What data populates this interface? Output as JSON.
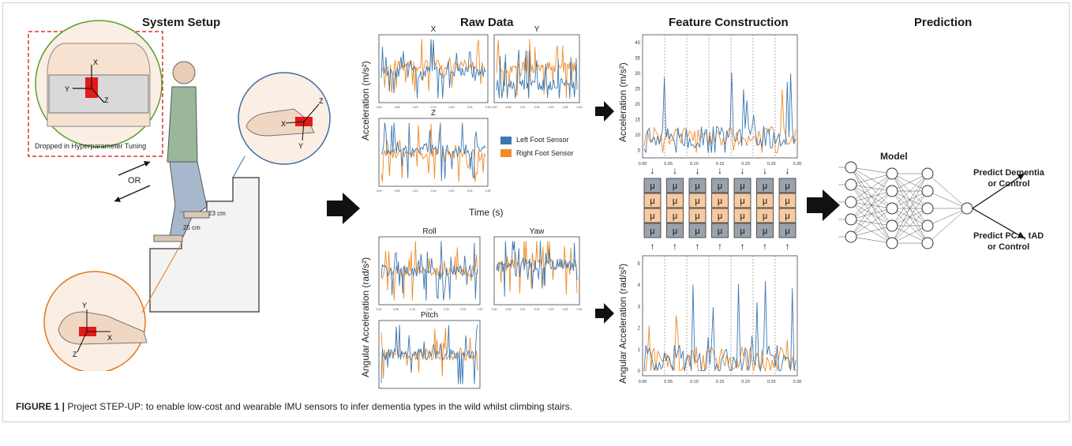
{
  "sections": {
    "setup_title": "System Setup",
    "raw_title": "Raw Data",
    "feature_title": "Feature Construction",
    "prediction_title": "Prediction"
  },
  "setup": {
    "dropped_label": "Dropped in Hyperparameter Tuning",
    "or_label": "OR",
    "step_height": "23 cm",
    "step_depth": "25 cm",
    "axis_x": "X",
    "axis_y": "Y",
    "axis_z": "Z"
  },
  "raw": {
    "accel_ylabel": "Acceleration (m/s²)",
    "angular_ylabel": "Angular Acceleration (rad/s²)",
    "time_label": "Time (s)",
    "panels": {
      "x": "X",
      "y": "Y",
      "z": "Z",
      "roll": "Roll",
      "yaw": "Yaw",
      "pitch": "Pitch"
    },
    "legend": {
      "left": "Left Foot Sensor",
      "right": "Right Foot Sensor"
    },
    "xticks": [
      "0.00",
      "0.05",
      "0.10",
      "0.15",
      "0.20",
      "0.25",
      "0.30"
    ]
  },
  "feature": {
    "accel_ylabel": "Acceleration (m/s²)",
    "angular_ylabel": "Angular Acceleration (rad/s²)",
    "xticks": [
      "0.00",
      "0.05",
      "0.10",
      "0.15",
      "0.20",
      "0.25",
      "0.30"
    ],
    "accel_yticks": [
      "5",
      "10",
      "15",
      "20",
      "25",
      "30",
      "35",
      "40"
    ],
    "angular_yticks": [
      "0",
      "1",
      "2",
      "3",
      "4",
      "5"
    ],
    "mu_symbol": "μ"
  },
  "prediction": {
    "model_label": "Model",
    "out1_line1": "Predict Dementia",
    "out1_line2": "or Control",
    "out2_line1": "Predict PCA, tAD",
    "out2_line2": "or Control"
  },
  "caption": {
    "label": "FIGURE 1 |",
    "text": "Project STEP-UP: to enable low-cost and wearable IMU sensors to infer dementia types in the wild whilst climbing stairs."
  },
  "colors": {
    "left_sensor": "#3b78b4",
    "right_sensor": "#f08a24",
    "mu_gray": "#9aa3ad",
    "mu_peach": "#f6c9a0",
    "frame": "#cfcfcf"
  }
}
